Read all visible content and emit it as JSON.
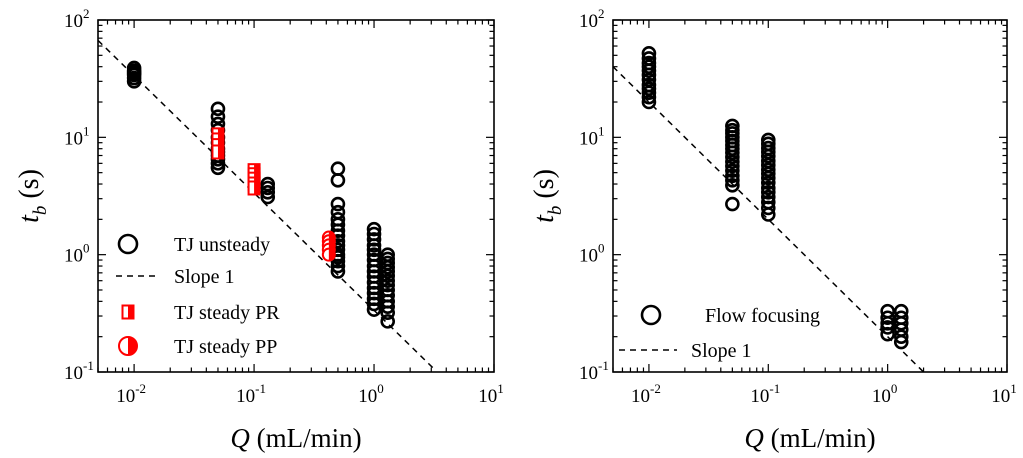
{
  "chart_data": [
    {
      "type": "scatter",
      "xlabel": "Q (mL/min)",
      "xlabel_var": "Q",
      "xlabel_unit": " (mL/min)",
      "ylabel": "t_b (s)",
      "ylabel_var": "t",
      "ylabel_sub": "b",
      "ylabel_unit": " (s)",
      "xscale": "log",
      "yscale": "log",
      "xlim": [
        0.005,
        10
      ],
      "ylim": [
        0.1,
        100
      ],
      "x_ticks": [
        {
          "base": "10",
          "exp": "-2"
        },
        {
          "base": "10",
          "exp": "-1"
        },
        {
          "base": "10",
          "exp": "0"
        },
        {
          "base": "10",
          "exp": "1"
        }
      ],
      "y_ticks": [
        {
          "base": "10",
          "exp": "-1"
        },
        {
          "base": "10",
          "exp": "0"
        },
        {
          "base": "10",
          "exp": "1"
        },
        {
          "base": "10",
          "exp": "2"
        }
      ],
      "grid": false,
      "legend_position": "bottom-left",
      "series": [
        {
          "name": "TJ unsteady",
          "marker": "open-circle",
          "color": "#000000",
          "x": [
            0.01,
            0.01,
            0.01,
            0.01,
            0.01,
            0.01,
            0.01,
            0.05,
            0.05,
            0.05,
            0.05,
            0.05,
            0.05,
            0.05,
            0.05,
            0.05,
            0.05,
            0.05,
            0.05,
            0.13,
            0.13,
            0.13,
            0.13,
            0.5,
            0.5,
            0.5,
            0.5,
            0.5,
            0.5,
            0.5,
            0.5,
            0.5,
            0.5,
            0.5,
            0.5,
            0.5,
            0.5,
            0.5,
            0.5,
            1.0,
            1.0,
            1.0,
            1.0,
            1.0,
            1.0,
            1.0,
            1.0,
            1.0,
            1.0,
            1.0,
            1.0,
            1.0,
            1.0,
            1.0,
            1.0,
            1.3,
            1.3,
            1.3,
            1.3,
            1.3,
            1.3,
            1.3,
            1.3,
            1.3,
            1.3,
            1.3,
            1.3,
            1.3,
            1.3
          ],
          "y": [
            39,
            37,
            36,
            35,
            34,
            32,
            30,
            17.5,
            15,
            13,
            11.5,
            10,
            9,
            8,
            7.5,
            7,
            6.5,
            6,
            5.5,
            4,
            3.7,
            3.4,
            3.1,
            5.4,
            4.3,
            2.7,
            2.3,
            2.0,
            1.8,
            1.6,
            1.45,
            1.3,
            1.2,
            1.1,
            1.0,
            0.95,
            0.88,
            0.8,
            0.72,
            1.65,
            1.5,
            1.35,
            1.2,
            1.1,
            1.0,
            0.9,
            0.8,
            0.72,
            0.65,
            0.58,
            0.52,
            0.47,
            0.42,
            0.38,
            0.34,
            1.0,
            0.92,
            0.85,
            0.78,
            0.72,
            0.66,
            0.6,
            0.55,
            0.5,
            0.45,
            0.4,
            0.36,
            0.32,
            0.27
          ]
        },
        {
          "name": "Slope 1",
          "line": "dashed",
          "color": "#000000",
          "x": [
            0.005,
            3.2
          ],
          "y": [
            67,
            0.105
          ]
        },
        {
          "name": "TJ steady PR",
          "marker": "half-filled-square",
          "color": "#ff0000",
          "x": [
            0.05,
            0.05,
            0.05,
            0.05,
            0.1,
            0.1,
            0.1,
            0.1,
            0.1
          ],
          "y": [
            10.5,
            9.5,
            8.5,
            7.5,
            5.2,
            4.8,
            4.4,
            4.0,
            3.7
          ]
        },
        {
          "name": "TJ steady PP",
          "marker": "half-filled-circle",
          "color": "#ff0000",
          "x": [
            0.42,
            0.42,
            0.42,
            0.42,
            0.42
          ],
          "y": [
            1.4,
            1.3,
            1.2,
            1.1,
            1.0
          ]
        }
      ]
    },
    {
      "type": "scatter",
      "xlabel": "Q (mL/min)",
      "xlabel_var": "Q",
      "xlabel_unit": " (mL/min)",
      "ylabel": "t_b (s)",
      "ylabel_var": "t",
      "ylabel_sub": "b",
      "ylabel_unit": " (s)",
      "xscale": "log",
      "yscale": "log",
      "xlim": [
        0.005,
        10
      ],
      "ylim": [
        0.1,
        100
      ],
      "x_ticks": [
        {
          "base": "10",
          "exp": "-2"
        },
        {
          "base": "10",
          "exp": "-1"
        },
        {
          "base": "10",
          "exp": "0"
        },
        {
          "base": "10",
          "exp": "1"
        }
      ],
      "y_ticks": [
        {
          "base": "10",
          "exp": "-1"
        },
        {
          "base": "10",
          "exp": "0"
        },
        {
          "base": "10",
          "exp": "1"
        },
        {
          "base": "10",
          "exp": "2"
        }
      ],
      "grid": false,
      "legend_position": "bottom-left",
      "series": [
        {
          "name": "Flow focusing",
          "marker": "open-circle",
          "color": "#000000",
          "x": [
            0.01,
            0.01,
            0.01,
            0.01,
            0.01,
            0.01,
            0.01,
            0.01,
            0.01,
            0.01,
            0.01,
            0.01,
            0.05,
            0.05,
            0.05,
            0.05,
            0.05,
            0.05,
            0.05,
            0.05,
            0.05,
            0.05,
            0.05,
            0.05,
            0.05,
            0.05,
            0.05,
            0.05,
            0.1,
            0.1,
            0.1,
            0.1,
            0.1,
            0.1,
            0.1,
            0.1,
            0.1,
            0.1,
            0.1,
            0.1,
            0.1,
            0.1,
            0.1,
            0.1,
            0.1,
            1.0,
            1.0,
            1.0,
            1.0,
            1.0,
            1.3,
            1.3,
            1.3,
            1.3,
            1.3,
            1.3
          ],
          "y": [
            52,
            47,
            43,
            40,
            37,
            34,
            31,
            28,
            26,
            24,
            22,
            20,
            12.5,
            11.5,
            10.8,
            10,
            9.3,
            8.6,
            8,
            7.4,
            6.8,
            6.2,
            5.7,
            5.2,
            4.7,
            4.3,
            3.9,
            2.7,
            9.5,
            8.8,
            8.1,
            7.5,
            6.9,
            6.3,
            5.8,
            5.3,
            4.9,
            4.5,
            4.1,
            3.7,
            3.4,
            3.1,
            2.8,
            2.5,
            2.2,
            0.33,
            0.29,
            0.26,
            0.24,
            0.21,
            0.33,
            0.29,
            0.26,
            0.23,
            0.2,
            0.18
          ]
        },
        {
          "name": "Slope 1",
          "line": "dashed",
          "color": "#000000",
          "x": [
            0.005,
            2.0
          ],
          "y": [
            40,
            0.1
          ]
        }
      ]
    }
  ]
}
